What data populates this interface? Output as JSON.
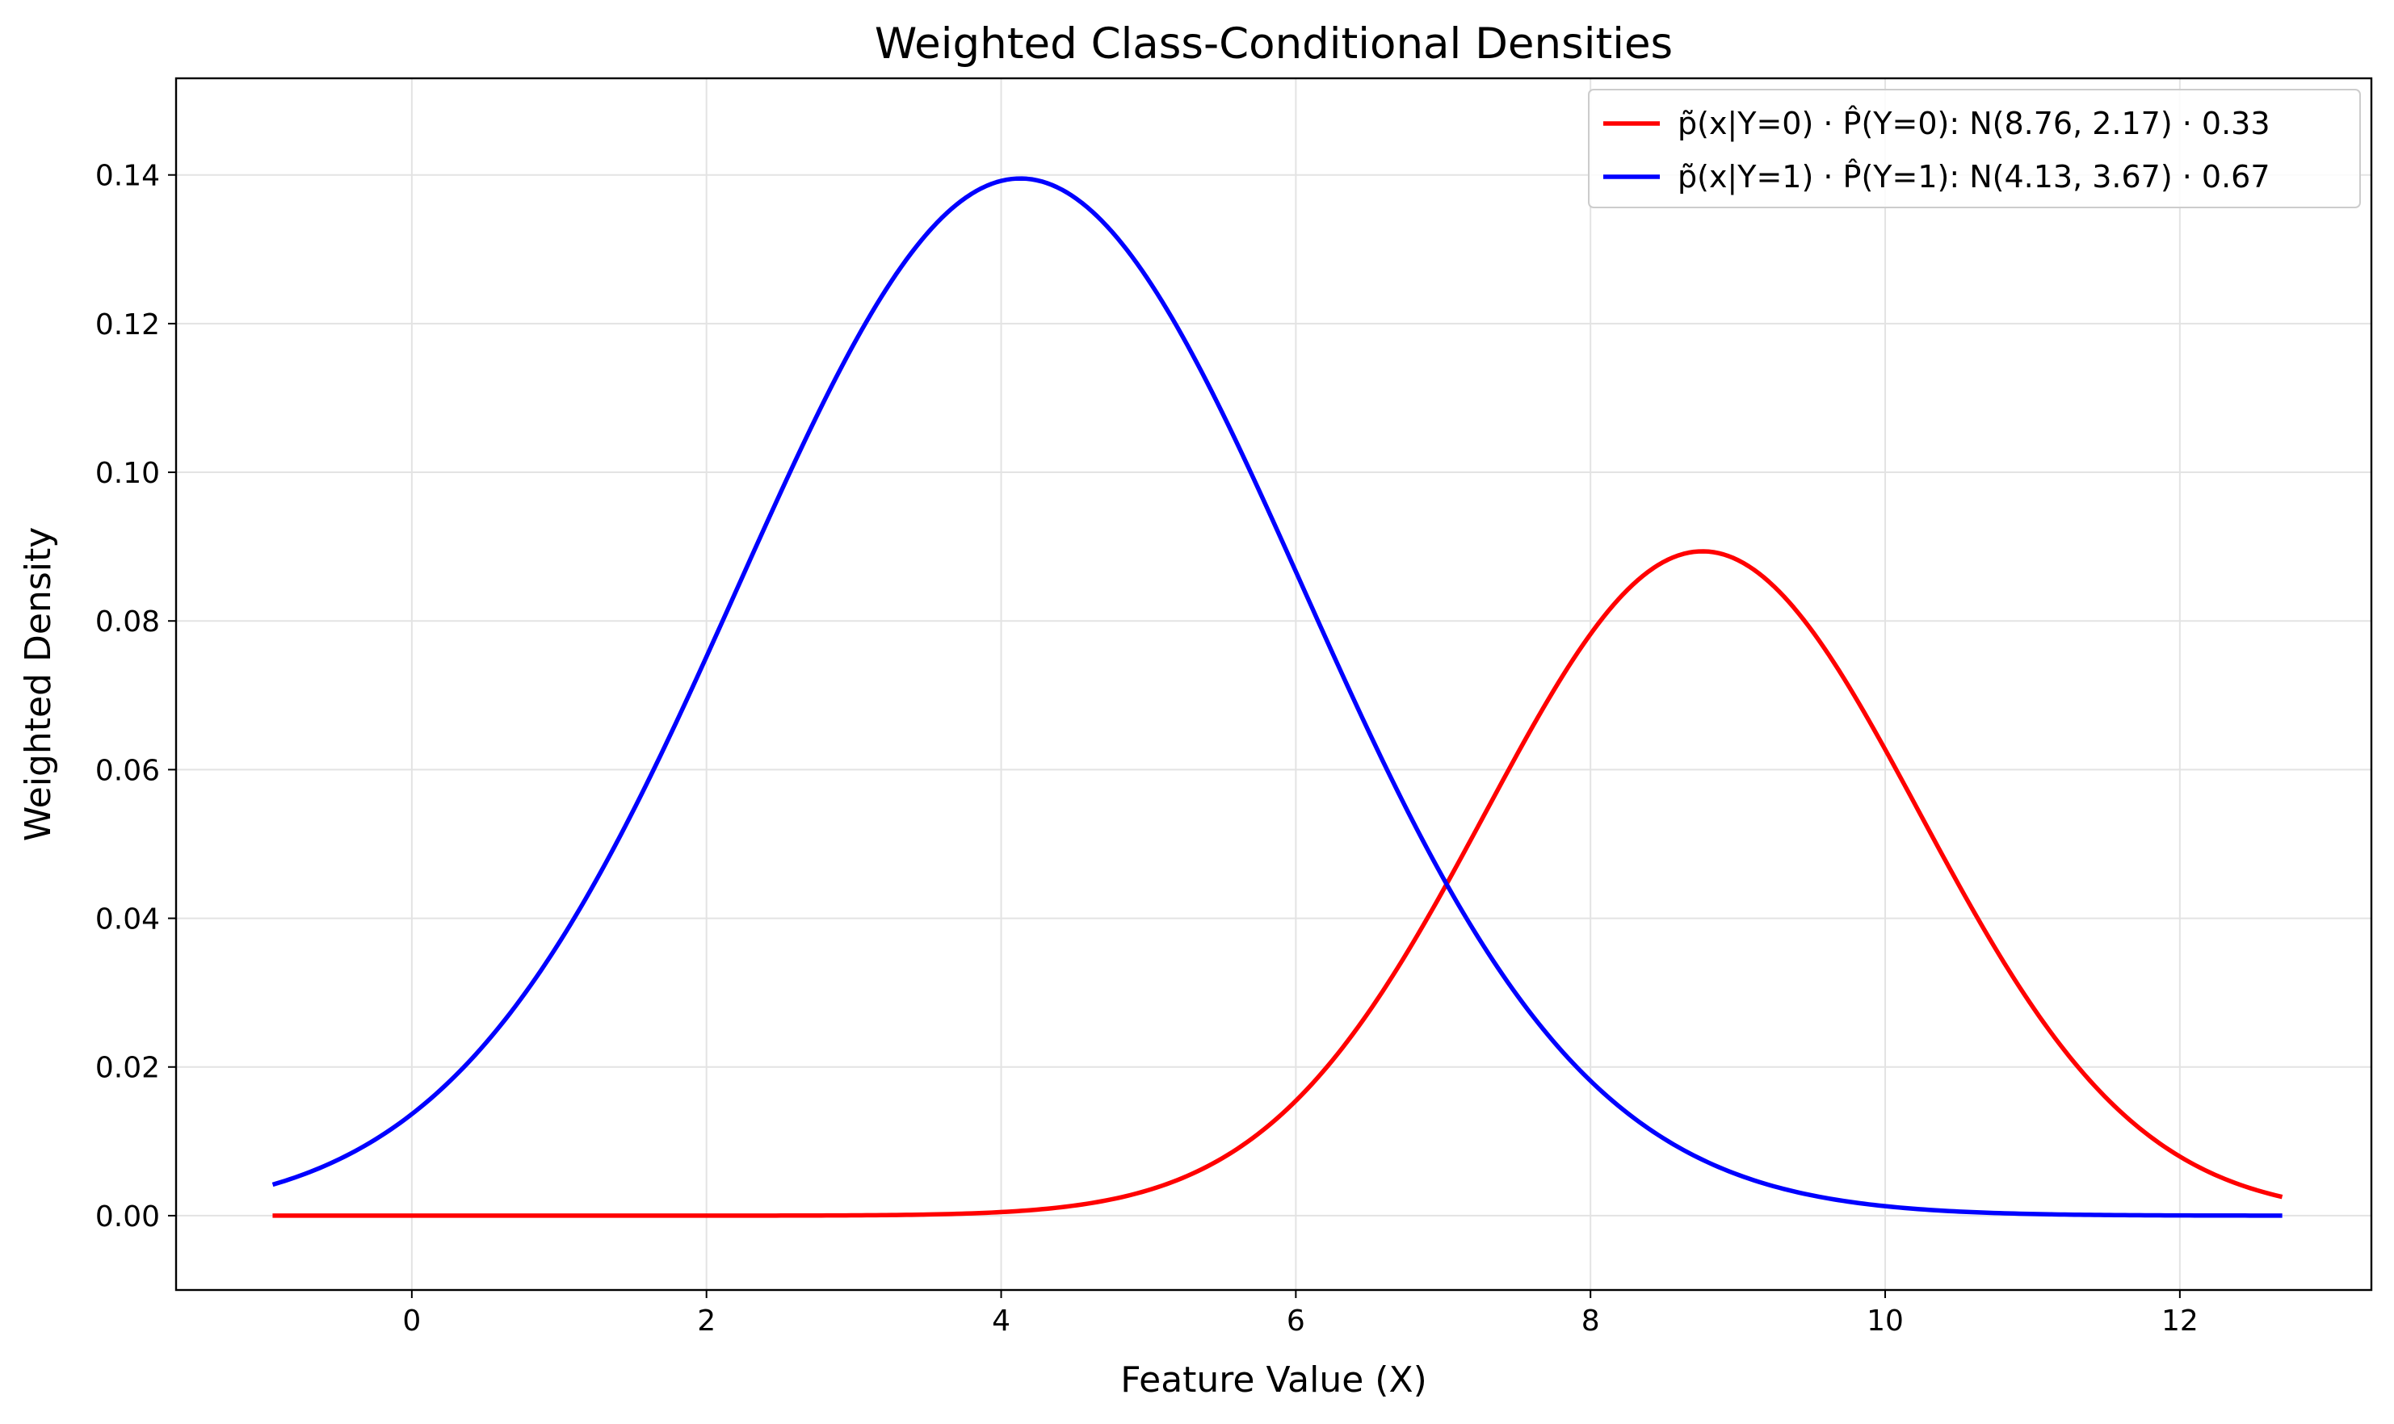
{
  "chart_data": {
    "type": "line",
    "title": "Weighted Class-Conditional Densities",
    "xlabel": "Feature Value (X)",
    "ylabel": "Weighted Density",
    "xlim": [
      -1.6,
      13.3
    ],
    "ylim": [
      -0.01,
      0.153
    ],
    "x_ticks": [
      0,
      2,
      4,
      6,
      8,
      10,
      12
    ],
    "y_ticks": [
      0.0,
      0.02,
      0.04,
      0.06,
      0.08,
      0.1,
      0.12,
      0.14
    ],
    "x_tick_labels": [
      "0",
      "2",
      "4",
      "6",
      "8",
      "10",
      "12"
    ],
    "y_tick_labels": [
      "0.00",
      "0.02",
      "0.04",
      "0.06",
      "0.08",
      "0.10",
      "0.12",
      "0.14"
    ],
    "grid": true,
    "legend_position": "top-right",
    "x_range": [
      -0.93,
      12.68
    ],
    "series": [
      {
        "name": "p̃(x|Y=0) · P̂(Y=0): N(8.76, 2.17) · 0.33",
        "distribution": "normal",
        "mean": 8.76,
        "variance": 2.17,
        "weight": 0.33,
        "peak": 0.0904,
        "color": "#ff0000"
      },
      {
        "name": "p̃(x|Y=1) · P̂(Y=1): N(4.13, 3.67) · 0.67",
        "distribution": "normal",
        "mean": 4.13,
        "variance": 3.67,
        "weight": 0.67,
        "peak": 0.139,
        "color": "#0000ff"
      }
    ]
  }
}
